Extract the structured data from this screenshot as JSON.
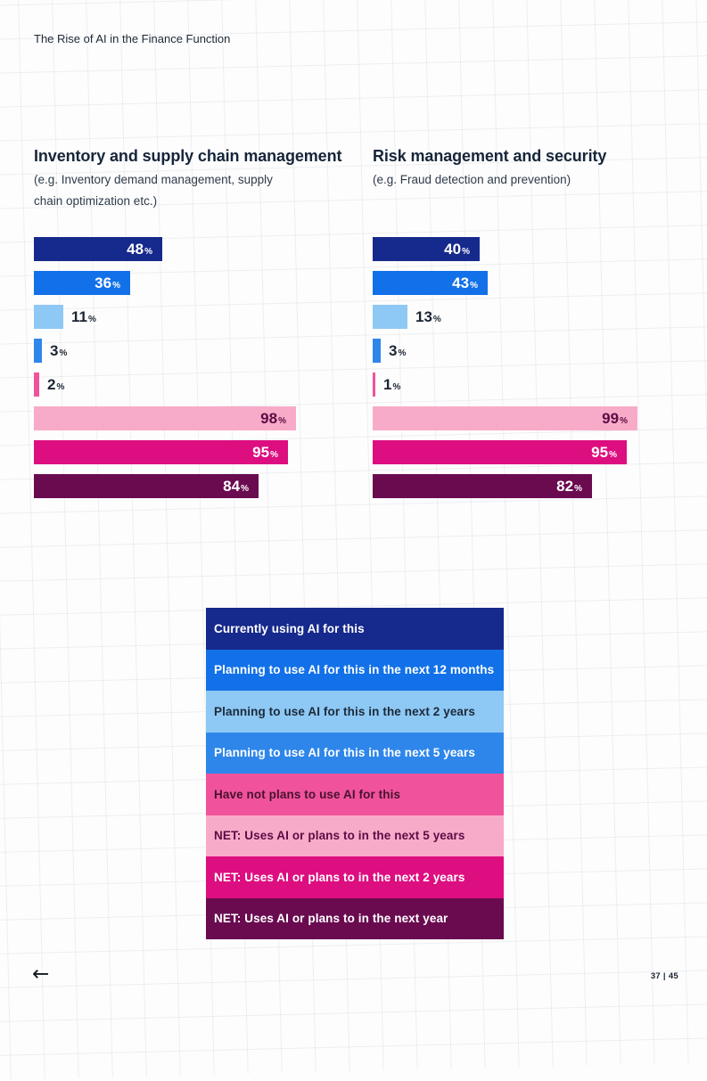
{
  "page": {
    "header": "The Rise of AI in the Finance Function",
    "page_number": "37 | 45"
  },
  "footer": {
    "back_arrow": "←"
  },
  "colors": {
    "background": "#fdfdfd",
    "grid_line": "#e8e8ee",
    "heading_text": "#16253a",
    "body_text": "#2e3b4a",
    "outside_label_text": "#1c2533",
    "plum_label_text": "#5c0b45",
    "navy": "#16298c",
    "blue": "#1271e8",
    "light_blue": "#8ec8f4",
    "mid_blue": "#2e86ea",
    "pink": "#f0539c",
    "light_pink": "#f8abc8",
    "magenta": "#dd0e80",
    "plum": "#6a0b50"
  },
  "chart_data": [
    {
      "type": "bar",
      "orientation": "horizontal",
      "title": "Inventory and supply chain management",
      "subtitle": "(e.g. Inventory demand management, supply chain optimization etc.)",
      "unit": "%",
      "xlim": [
        0,
        100
      ],
      "grid": false,
      "categories": [
        "Currently using AI for this",
        "Planning to use AI for this in the next 12 months",
        "Planning to use AI for this in the next 2 years",
        "Planning to use AI for this in the next 5 years",
        "Have not plans to use AI for this",
        "NET: Uses AI or plans to in the next 5 years",
        "NET: Uses AI or plans to in the next 2 years",
        "NET: Uses AI or plans to in the next year"
      ],
      "values": [
        48,
        36,
        11,
        3,
        2,
        98,
        95,
        84
      ]
    },
    {
      "type": "bar",
      "orientation": "horizontal",
      "title": "Risk management and security",
      "subtitle": "(e.g. Fraud detection and prevention)",
      "unit": "%",
      "xlim": [
        0,
        100
      ],
      "grid": false,
      "categories": [
        "Currently using AI for this",
        "Planning to use AI for this in the next 12 months",
        "Planning to use AI for this in the next 2 years",
        "Planning to use AI for this in the next 5 years",
        "Have not plans to use AI for this",
        "NET: Uses AI or plans to in the next 5 years",
        "NET: Uses AI or plans to in the next 2 years",
        "NET: Uses AI or plans to in the next year"
      ],
      "values": [
        40,
        43,
        13,
        3,
        1,
        99,
        95,
        82
      ]
    }
  ],
  "legend": {
    "position": "bottom-center",
    "items": [
      {
        "label": "Currently using AI for this",
        "color": "#16298c",
        "text_color": "#ffffff"
      },
      {
        "label": "Planning to use AI for this in the next 12 months",
        "color": "#1271e8",
        "text_color": "#ffffff"
      },
      {
        "label": "Planning to use AI for this in the next 2 years",
        "color": "#8ec8f4",
        "text_color": "#1c2a3a"
      },
      {
        "label": "Planning to use AI for this in the next 5 years",
        "color": "#2e86ea",
        "text_color": "#ffffff"
      },
      {
        "label": "Have not plans to use AI for this",
        "color": "#f0539c",
        "text_color": "#47122e"
      },
      {
        "label": "NET: Uses AI or plans to in the next 5 years",
        "color": "#f8abc8",
        "text_color": "#5c0b45"
      },
      {
        "label": "NET: Uses AI or plans to in the next 2 years",
        "color": "#dd0e80",
        "text_color": "#ffffff"
      },
      {
        "label": "NET: Uses AI or plans to in the next year",
        "color": "#6a0b50",
        "text_color": "#ffffff"
      }
    ]
  }
}
